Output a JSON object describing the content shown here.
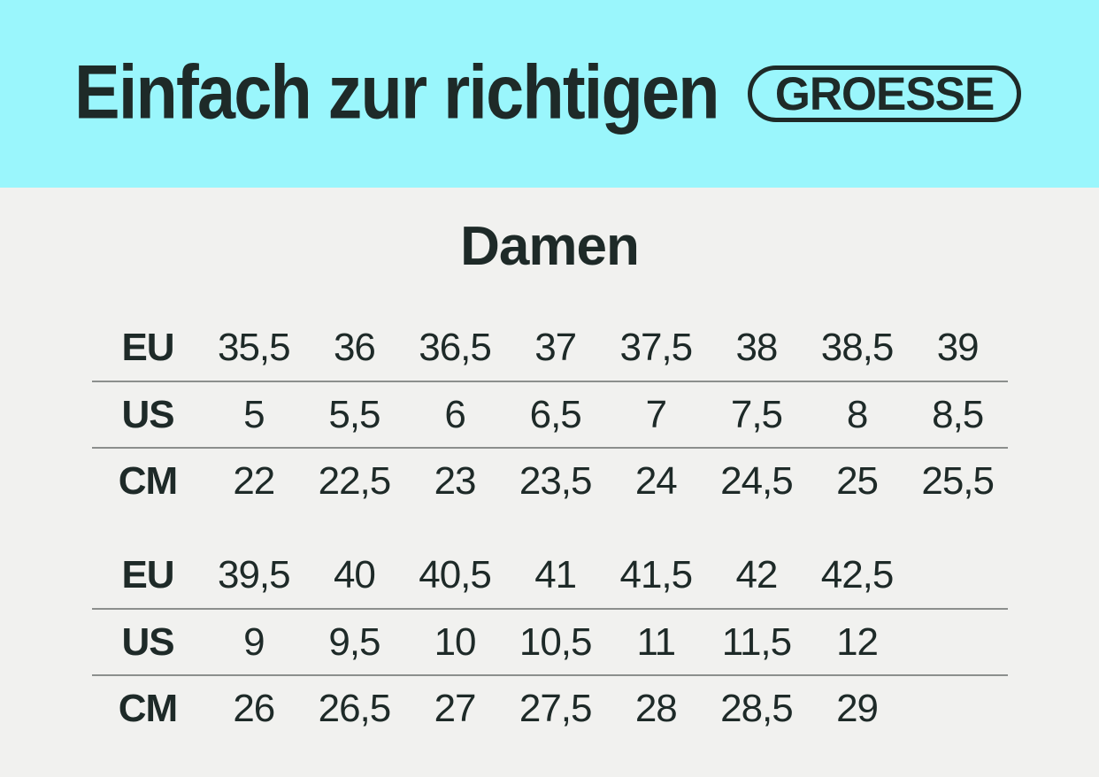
{
  "banner": {
    "title": "Einfach zur richtigen",
    "badge": "GROESSE",
    "background": "#9AF6FC"
  },
  "section": {
    "title": "Damen"
  },
  "size_table": {
    "groups": [
      {
        "rows": [
          {
            "label": "EU",
            "values": [
              "35,5",
              "36",
              "36,5",
              "37",
              "37,5",
              "38",
              "38,5",
              "39"
            ]
          },
          {
            "label": "US",
            "values": [
              "5",
              "5,5",
              "6",
              "6,5",
              "7",
              "7,5",
              "8",
              "8,5"
            ]
          },
          {
            "label": "CM",
            "values": [
              "22",
              "22,5",
              "23",
              "23,5",
              "24",
              "24,5",
              "25",
              "25,5"
            ]
          }
        ]
      },
      {
        "rows": [
          {
            "label": "EU",
            "values": [
              "39,5",
              "40",
              "40,5",
              "41",
              "41,5",
              "42",
              "42,5"
            ]
          },
          {
            "label": "US",
            "values": [
              "9",
              "9,5",
              "10",
              "10,5",
              "11",
              "11,5",
              "12"
            ]
          },
          {
            "label": "CM",
            "values": [
              "26",
              "26,5",
              "27",
              "27,5",
              "28",
              "28,5",
              "29"
            ]
          }
        ]
      }
    ]
  },
  "colors": {
    "banner_background": "#9AF6FC",
    "page_background": "#F1F1EF",
    "text": "#1E2A28",
    "divider": "#8C8F8D"
  }
}
